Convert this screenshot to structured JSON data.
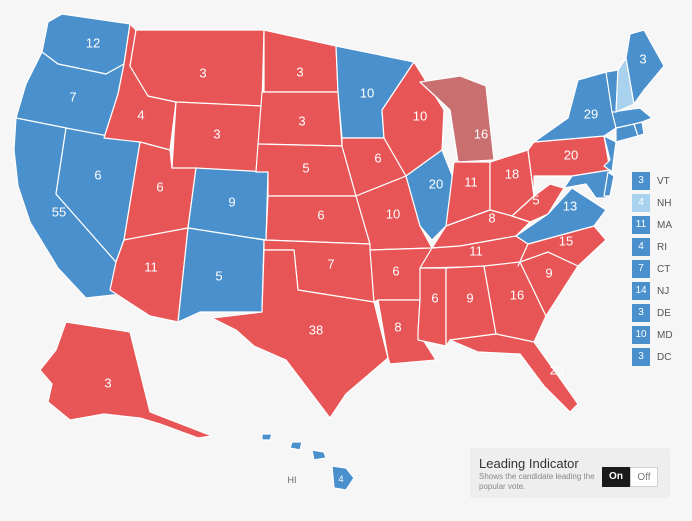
{
  "colors": {
    "dem": "#4a90cc",
    "rep": "#e85556",
    "rep_lean": "#c96f70",
    "dem_lean": "#a9d2ef"
  },
  "states": [
    {
      "id": "WA",
      "ev": "12",
      "party": "dem"
    },
    {
      "id": "OR",
      "ev": "7",
      "party": "dem"
    },
    {
      "id": "CA",
      "ev": "55",
      "party": "dem"
    },
    {
      "id": "NV",
      "ev": "6",
      "party": "dem"
    },
    {
      "id": "ID",
      "ev": "4",
      "party": "rep"
    },
    {
      "id": "MT",
      "ev": "3",
      "party": "rep"
    },
    {
      "id": "WY",
      "ev": "3",
      "party": "rep"
    },
    {
      "id": "UT",
      "ev": "6",
      "party": "rep"
    },
    {
      "id": "AZ",
      "ev": "11",
      "party": "rep"
    },
    {
      "id": "CO",
      "ev": "9",
      "party": "dem"
    },
    {
      "id": "NM",
      "ev": "5",
      "party": "dem"
    },
    {
      "id": "ND",
      "ev": "3",
      "party": "rep"
    },
    {
      "id": "SD",
      "ev": "3",
      "party": "rep"
    },
    {
      "id": "NE",
      "ev": "5",
      "party": "rep"
    },
    {
      "id": "KS",
      "ev": "6",
      "party": "rep"
    },
    {
      "id": "OK",
      "ev": "7",
      "party": "rep"
    },
    {
      "id": "TX",
      "ev": "38",
      "party": "rep"
    },
    {
      "id": "MN",
      "ev": "10",
      "party": "dem"
    },
    {
      "id": "IA",
      "ev": "6",
      "party": "rep"
    },
    {
      "id": "MO",
      "ev": "10",
      "party": "rep"
    },
    {
      "id": "AR",
      "ev": "6",
      "party": "rep"
    },
    {
      "id": "LA",
      "ev": "8",
      "party": "rep"
    },
    {
      "id": "WI",
      "ev": "10",
      "party": "rep"
    },
    {
      "id": "IL",
      "ev": "20",
      "party": "dem"
    },
    {
      "id": "MI",
      "ev": "16",
      "party": "rep_lean"
    },
    {
      "id": "IN",
      "ev": "11",
      "party": "rep"
    },
    {
      "id": "OH",
      "ev": "18",
      "party": "rep"
    },
    {
      "id": "KY",
      "ev": "8",
      "party": "rep"
    },
    {
      "id": "TN",
      "ev": "11",
      "party": "rep"
    },
    {
      "id": "MS",
      "ev": "6",
      "party": "rep"
    },
    {
      "id": "AL",
      "ev": "9",
      "party": "rep"
    },
    {
      "id": "GA",
      "ev": "16",
      "party": "rep"
    },
    {
      "id": "FL",
      "ev": "29",
      "party": "rep"
    },
    {
      "id": "SC",
      "ev": "9",
      "party": "rep"
    },
    {
      "id": "NC",
      "ev": "15",
      "party": "rep"
    },
    {
      "id": "VA",
      "ev": "13",
      "party": "dem"
    },
    {
      "id": "WV",
      "ev": "5",
      "party": "rep"
    },
    {
      "id": "PA",
      "ev": "20",
      "party": "rep"
    },
    {
      "id": "NY",
      "ev": "29",
      "party": "dem"
    },
    {
      "id": "ME",
      "ev": "3",
      "party": "dem"
    },
    {
      "id": "AK",
      "ev": "3",
      "party": "rep"
    },
    {
      "id": "HI",
      "ev": "4",
      "party": "dem"
    }
  ],
  "hi_label": "HI",
  "small_states": [
    {
      "abbr": "VT",
      "ev": "3",
      "party": "dem"
    },
    {
      "abbr": "NH",
      "ev": "4",
      "party": "dem_lean"
    },
    {
      "abbr": "MA",
      "ev": "11",
      "party": "dem"
    },
    {
      "abbr": "RI",
      "ev": "4",
      "party": "dem"
    },
    {
      "abbr": "CT",
      "ev": "7",
      "party": "dem"
    },
    {
      "abbr": "NJ",
      "ev": "14",
      "party": "dem"
    },
    {
      "abbr": "DE",
      "ev": "3",
      "party": "dem"
    },
    {
      "abbr": "MD",
      "ev": "10",
      "party": "dem"
    },
    {
      "abbr": "DC",
      "ev": "3",
      "party": "dem"
    }
  ],
  "leading": {
    "title": "Leading Indicator",
    "subtitle": "Shows the candidate leading the popular vote.",
    "on_label": "On",
    "off_label": "Off"
  }
}
